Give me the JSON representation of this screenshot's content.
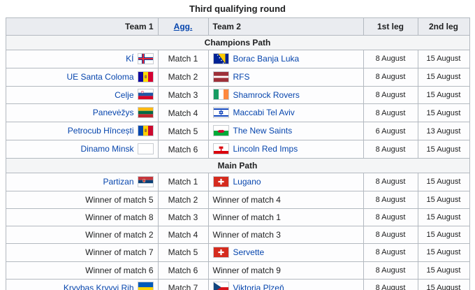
{
  "title": "Third qualifying round",
  "columns": {
    "team1": "Team 1",
    "agg": "Agg.",
    "team2": "Team 2",
    "leg1": "1st leg",
    "leg2": "2nd leg"
  },
  "colors": {
    "link": "#0645ad",
    "header_bg": "#eaecf0",
    "section_bg": "#f4f5f6",
    "border": "#b3b9c0",
    "row_bg": "#fdfdfe"
  },
  "sections": [
    {
      "label": "Champions Path",
      "rows": [
        {
          "team1": "KÍ",
          "team1_flag": "faroe-islands",
          "team1_link": true,
          "agg": "Match 1",
          "team2": "Borac Banja Luka",
          "team2_flag": "bosnia-herzegovina",
          "team2_link": true,
          "leg1": "8 August",
          "leg2": "15 August"
        },
        {
          "team1": "UE Santa Coloma",
          "team1_flag": "andorra",
          "team1_link": true,
          "agg": "Match 2",
          "team2": "RFS",
          "team2_flag": "latvia",
          "team2_link": true,
          "leg1": "8 August",
          "leg2": "15 August"
        },
        {
          "team1": "Celje",
          "team1_flag": "slovenia",
          "team1_link": true,
          "agg": "Match 3",
          "team2": "Shamrock Rovers",
          "team2_flag": "ireland",
          "team2_link": true,
          "leg1": "8 August",
          "leg2": "15 August"
        },
        {
          "team1": "Panevėžys",
          "team1_flag": "lithuania",
          "team1_link": true,
          "agg": "Match 4",
          "team2": "Maccabi Tel Aviv",
          "team2_flag": "israel",
          "team2_link": true,
          "leg1": "8 August",
          "leg2": "15 August"
        },
        {
          "team1": "Petrocub Hîncești",
          "team1_flag": "moldova",
          "team1_link": true,
          "agg": "Match 5",
          "team2": "The New Saints",
          "team2_flag": "wales",
          "team2_link": true,
          "leg1": "6 August",
          "leg2": "13 August"
        },
        {
          "team1": "Dinamo Minsk",
          "team1_flag": "neutral-white",
          "team1_link": true,
          "agg": "Match 6",
          "team2": "Lincoln Red Imps",
          "team2_flag": "gibraltar",
          "team2_link": true,
          "leg1": "8 August",
          "leg2": "15 August"
        }
      ]
    },
    {
      "label": "Main Path",
      "rows": [
        {
          "team1": "Partizan",
          "team1_flag": "serbia",
          "team1_link": true,
          "agg": "Match 1",
          "team2": "Lugano",
          "team2_flag": "switzerland",
          "team2_link": true,
          "leg1": "8 August",
          "leg2": "15 August"
        },
        {
          "team1": "Winner of match 5",
          "team1_link": false,
          "agg": "Match 2",
          "team2": "Winner of match 4",
          "team2_link": false,
          "leg1": "8 August",
          "leg2": "15 August"
        },
        {
          "team1": "Winner of match 8",
          "team1_link": false,
          "agg": "Match 3",
          "team2": "Winner of match 1",
          "team2_link": false,
          "leg1": "8 August",
          "leg2": "15 August"
        },
        {
          "team1": "Winner of match 2",
          "team1_link": false,
          "agg": "Match 4",
          "team2": "Winner of match 3",
          "team2_link": false,
          "leg1": "8 August",
          "leg2": "15 August"
        },
        {
          "team1": "Winner of match 7",
          "team1_link": false,
          "agg": "Match 5",
          "team2": "Servette",
          "team2_flag": "switzerland",
          "team2_link": true,
          "leg1": "8 August",
          "leg2": "15 August"
        },
        {
          "team1": "Winner of match 6",
          "team1_link": false,
          "agg": "Match 6",
          "team2": "Winner of match 9",
          "team2_link": false,
          "leg1": "8 August",
          "leg2": "15 August"
        },
        {
          "team1": "Kryvbas Kryvyi Rih",
          "team1_flag": "ukraine",
          "team1_link": true,
          "agg": "Match 7",
          "team2": "Viktoria Plzeň",
          "team2_flag": "czech-republic",
          "team2_link": true,
          "leg1": "8 August",
          "leg2": "15 August"
        }
      ]
    }
  ]
}
